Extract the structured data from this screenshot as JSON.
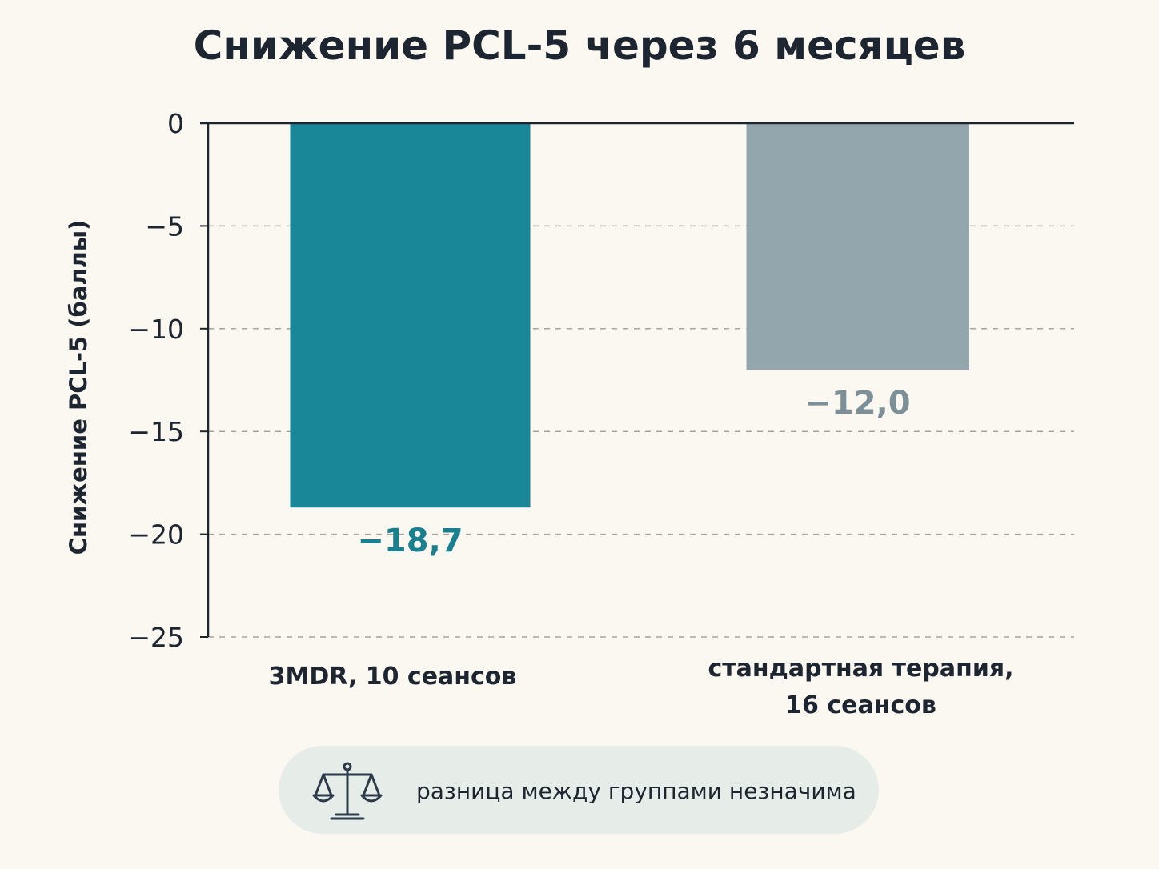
{
  "chart_data": {
    "type": "bar",
    "title": "Снижение PCL-5 через 6 месяцев",
    "ylabel": "Снижение PCL-5 (баллы)",
    "xlabel": "",
    "ylim": [
      -25,
      0
    ],
    "yticks": [
      0,
      -5,
      -10,
      -15,
      -20,
      -25
    ],
    "ytick_labels": [
      "0",
      "−5",
      "−10",
      "−15",
      "−20",
      "−25"
    ],
    "grid": "horizontal dashed",
    "categories": [
      [
        "3MDR, 10 сеансов"
      ],
      [
        "стандартная терапия,",
        "16 сеансов"
      ]
    ],
    "values": [
      -18.7,
      -12.0
    ],
    "value_labels": [
      "−18,7",
      "−12,0"
    ],
    "colors": [
      "#1a8798",
      "#94a6ad"
    ],
    "label_colors": [
      "#1a7f8f",
      "#7d8f97"
    ]
  },
  "note": {
    "icon": "scales-icon",
    "text": "разница между группами незначима"
  }
}
